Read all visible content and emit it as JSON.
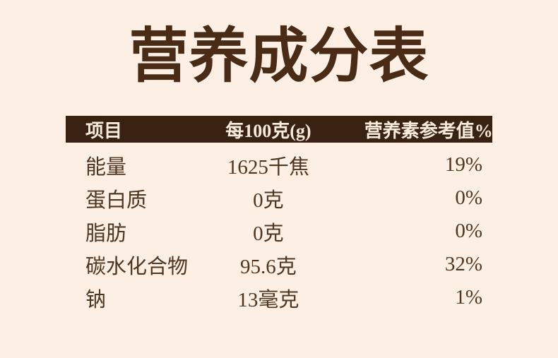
{
  "colors": {
    "background": "#fdefe3",
    "header_bg": "#3a2213",
    "header_text": "#f6ead9",
    "title_text": "#4a2b15",
    "body_text": "#503621"
  },
  "title": "营养成分表",
  "table": {
    "header": {
      "item": "项目",
      "per_100g": "每100克(g)",
      "nrv_percent": "营养素参考值%"
    },
    "rows": [
      {
        "item": "能量",
        "per_100g": "1625千焦",
        "nrv": "19%"
      },
      {
        "item": "蛋白质",
        "per_100g": "0克",
        "nrv": "0%"
      },
      {
        "item": "脂肪",
        "per_100g": "0克",
        "nrv": "0%"
      },
      {
        "item": "碳水化合物",
        "per_100g": "95.6克",
        "nrv": "32%"
      },
      {
        "item": "钠",
        "per_100g": "13毫克",
        "nrv": "1%"
      }
    ]
  }
}
